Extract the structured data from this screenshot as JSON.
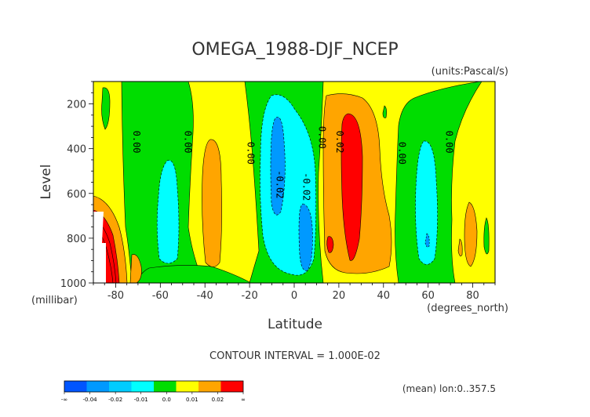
{
  "chart_data": {
    "type": "heatmap",
    "title": "OMEGA_1988-DJF_NCEP",
    "units": "(units:Pascal/s)",
    "xlabel": "Latitude",
    "x_units": "(degrees_north)",
    "ylabel": "Level",
    "y_units": "(millibar)",
    "xlim": [
      -90,
      90
    ],
    "ylim": [
      1000,
      100
    ],
    "x_ticks": [
      -80,
      -60,
      -40,
      -20,
      0,
      20,
      40,
      60,
      80
    ],
    "x_tick_labels": [
      "-80",
      "-60",
      "-40",
      "-20",
      "0",
      "20",
      "40",
      "60",
      "80"
    ],
    "y_ticks": [
      200,
      400,
      600,
      800,
      1000
    ],
    "y_tick_labels": [
      "200",
      "400",
      "600",
      "800",
      "1000"
    ],
    "contour_interval": "CONTOUR INTERVAL = 1.000E-02",
    "footnote": "(mean) lon:0..357.5",
    "colorbar": {
      "labels": [
        "-∞",
        "-0.04",
        "-0.02",
        "-0.01",
        "0.0",
        "0.01",
        "0.02",
        "∞"
      ],
      "colors": [
        "#0055ff",
        "#0099ff",
        "#00ccff",
        "#00ffff",
        "#00dd00",
        "#ffff00",
        "#ffa500",
        "#ff0000"
      ]
    },
    "contour_labels": [
      {
        "lat": -72,
        "lev": 370,
        "text": "0.00"
      },
      {
        "lat": -49,
        "lev": 370,
        "text": "0.00"
      },
      {
        "lat": -21,
        "lev": 420,
        "text": "0.00"
      },
      {
        "lat": -8,
        "lev": 560,
        "text": "-0.02"
      },
      {
        "lat": 4,
        "lev": 570,
        "text": "-0.02"
      },
      {
        "lat": 11,
        "lev": 350,
        "text": "0.00"
      },
      {
        "lat": 19,
        "lev": 370,
        "text": "0.02"
      },
      {
        "lat": 47,
        "lev": 420,
        "text": "0.00"
      },
      {
        "lat": 68,
        "lev": 370,
        "text": "0.00"
      }
    ]
  }
}
